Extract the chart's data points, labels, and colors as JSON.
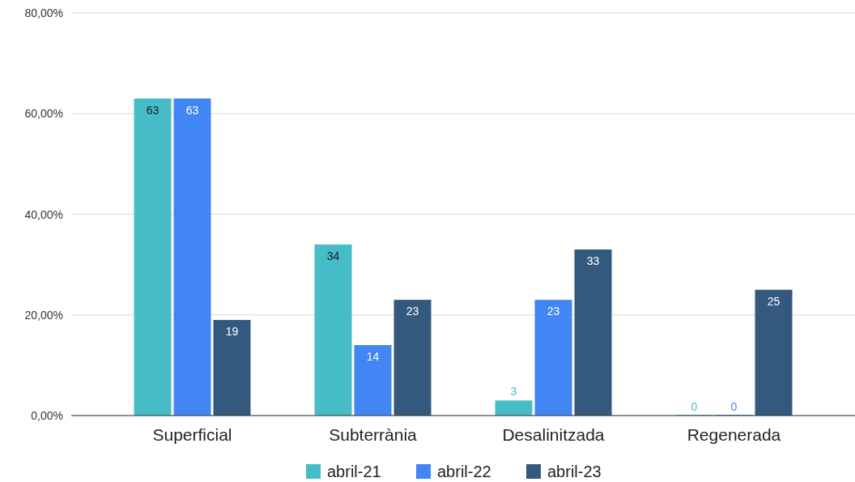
{
  "chart_data": {
    "type": "bar",
    "categories": [
      "Superficial",
      "Subterrània",
      "Desalinitzada",
      "Regenerada"
    ],
    "series": [
      {
        "name": "abril-21",
        "color": "#46bdc6",
        "values": [
          63,
          34,
          3,
          0
        ]
      },
      {
        "name": "abril-22",
        "color": "#4285f4",
        "values": [
          63,
          14,
          23,
          0
        ]
      },
      {
        "name": "abril-23",
        "color": "#34597e",
        "values": [
          19,
          23,
          33,
          25
        ]
      }
    ],
    "ylim": [
      0,
      80
    ],
    "yticks": [
      {
        "value": 0,
        "label": "0,00%"
      },
      {
        "value": 20,
        "label": "20,00%"
      },
      {
        "value": 40,
        "label": "40,00%"
      },
      {
        "value": 60,
        "label": "60,00%"
      },
      {
        "value": 80,
        "label": "80,00%"
      }
    ],
    "grid": "y",
    "legend": "bottom",
    "data_labels": true
  }
}
